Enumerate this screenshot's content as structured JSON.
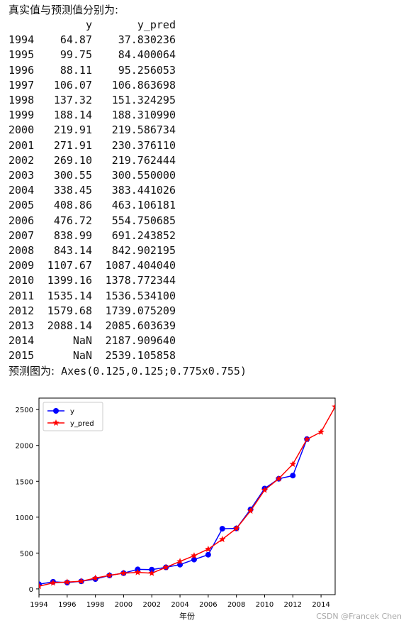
{
  "output": {
    "heading": "真实值与预测值分别为:",
    "columns": [
      "",
      "y",
      "y_pred"
    ],
    "rows": [
      {
        "index": "1994",
        "y": "64.87",
        "y_pred": "37.830236"
      },
      {
        "index": "1995",
        "y": "99.75",
        "y_pred": "84.400064"
      },
      {
        "index": "1996",
        "y": "88.11",
        "y_pred": "95.256053"
      },
      {
        "index": "1997",
        "y": "106.07",
        "y_pred": "106.863698"
      },
      {
        "index": "1998",
        "y": "137.32",
        "y_pred": "151.324295"
      },
      {
        "index": "1999",
        "y": "188.14",
        "y_pred": "188.310990"
      },
      {
        "index": "2000",
        "y": "219.91",
        "y_pred": "219.586734"
      },
      {
        "index": "2001",
        "y": "271.91",
        "y_pred": "230.376110"
      },
      {
        "index": "2002",
        "y": "269.10",
        "y_pred": "219.762444"
      },
      {
        "index": "2003",
        "y": "300.55",
        "y_pred": "300.550000"
      },
      {
        "index": "2004",
        "y": "338.45",
        "y_pred": "383.441026"
      },
      {
        "index": "2005",
        "y": "408.86",
        "y_pred": "463.106181"
      },
      {
        "index": "2006",
        "y": "476.72",
        "y_pred": "554.750685"
      },
      {
        "index": "2007",
        "y": "838.99",
        "y_pred": "691.243852"
      },
      {
        "index": "2008",
        "y": "843.14",
        "y_pred": "842.902195"
      },
      {
        "index": "2009",
        "y": "1107.67",
        "y_pred": "1087.404040"
      },
      {
        "index": "2010",
        "y": "1399.16",
        "y_pred": "1378.772344"
      },
      {
        "index": "2011",
        "y": "1535.14",
        "y_pred": "1536.534100"
      },
      {
        "index": "2012",
        "y": "1579.68",
        "y_pred": "1739.075209"
      },
      {
        "index": "2013",
        "y": "2088.14",
        "y_pred": "2085.603639"
      },
      {
        "index": "2014",
        "y": "NaN",
        "y_pred": "2187.909640"
      },
      {
        "index": "2015",
        "y": "NaN",
        "y_pred": "2539.105858"
      }
    ],
    "axes_label": "预测图为:",
    "axes_repr": "Axes(0.125,0.125;0.775x0.755)"
  },
  "chart_data": {
    "type": "line",
    "xlabel": "年份",
    "ylabel": "",
    "title": "",
    "xlim": [
      1994,
      2015
    ],
    "ylim": [
      -80,
      2660
    ],
    "xticks": [
      1994,
      1996,
      1998,
      2000,
      2002,
      2004,
      2006,
      2008,
      2010,
      2012,
      2014
    ],
    "yticks": [
      0,
      500,
      1000,
      1500,
      2000,
      2500
    ],
    "legend_position": "top-left",
    "grid": false,
    "series": [
      {
        "name": "y",
        "color": "#0000ff",
        "marker": "circle",
        "x": [
          1994,
          1995,
          1996,
          1997,
          1998,
          1999,
          2000,
          2001,
          2002,
          2003,
          2004,
          2005,
          2006,
          2007,
          2008,
          2009,
          2010,
          2011,
          2012,
          2013
        ],
        "values": [
          64.87,
          99.75,
          88.11,
          106.07,
          137.32,
          188.14,
          219.91,
          271.91,
          269.1,
          300.55,
          338.45,
          408.86,
          476.72,
          838.99,
          843.14,
          1107.67,
          1399.16,
          1535.14,
          1579.68,
          2088.14
        ]
      },
      {
        "name": "y_pred",
        "color": "#ff0000",
        "marker": "star",
        "x": [
          1994,
          1995,
          1996,
          1997,
          1998,
          1999,
          2000,
          2001,
          2002,
          2003,
          2004,
          2005,
          2006,
          2007,
          2008,
          2009,
          2010,
          2011,
          2012,
          2013,
          2014,
          2015
        ],
        "values": [
          37.830236,
          84.400064,
          95.256053,
          106.863698,
          151.324295,
          188.31099,
          219.586734,
          230.37611,
          219.762444,
          300.55,
          383.441026,
          463.106181,
          554.750685,
          691.243852,
          842.902195,
          1087.40404,
          1378.772344,
          1536.5341,
          1739.075209,
          2085.603639,
          2187.90964,
          2539.105858
        ]
      }
    ]
  },
  "watermark": "CSDN @Francek Chen"
}
